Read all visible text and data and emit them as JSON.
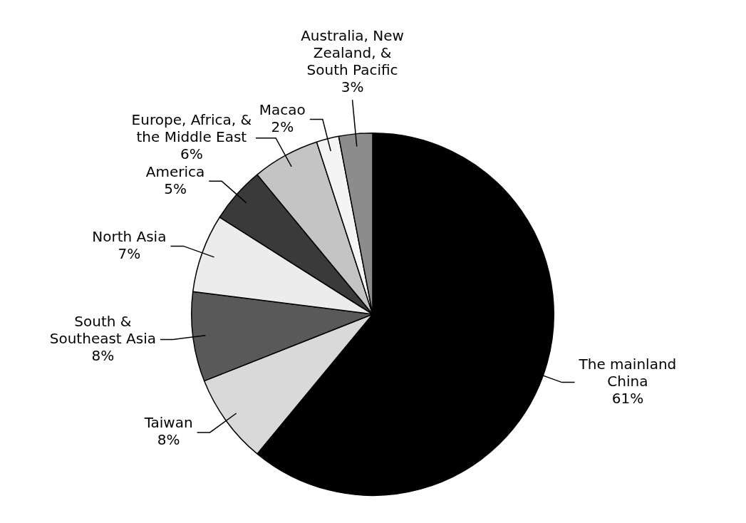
{
  "chart_data": {
    "type": "pie",
    "categories": [
      "The mainland China",
      "Taiwan",
      "South & Southeast Asia",
      "North Asia",
      "America",
      "Europe, Africa, & the Middle East",
      "Macao",
      "Australia, New Zealand, & South Pacific"
    ],
    "values": [
      61,
      8,
      8,
      7,
      5,
      6,
      2,
      3
    ],
    "colors": [
      "#000000",
      "#d9d9d9",
      "#595959",
      "#ececec",
      "#3a3a3a",
      "#c4c4c4",
      "#f4f4f4",
      "#8c8c8c"
    ],
    "value_labels": [
      "61%",
      "8%",
      "8%",
      "7%",
      "5%",
      "6%",
      "2%",
      "3%"
    ],
    "legend": false
  }
}
